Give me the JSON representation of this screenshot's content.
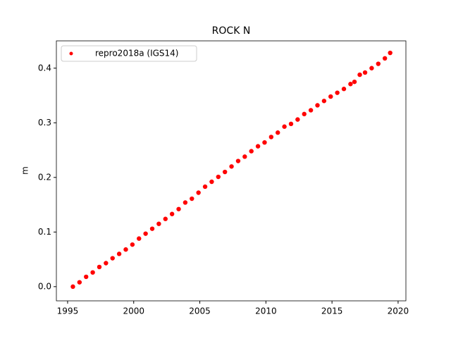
{
  "chart_data": {
    "type": "scatter",
    "title": "ROCK N",
    "y_label": "m",
    "series": [
      {
        "name": "repro2018a (IGS14)",
        "color": "#ff0000",
        "x": [
          1995.4,
          1995.9,
          1996.4,
          1996.9,
          1997.4,
          1997.9,
          1998.4,
          1998.9,
          1999.4,
          1999.9,
          2000.4,
          2000.9,
          2001.4,
          2001.9,
          2002.4,
          2002.9,
          2003.4,
          2003.9,
          2004.4,
          2004.9,
          2005.4,
          2005.9,
          2006.4,
          2006.9,
          2007.4,
          2007.9,
          2008.4,
          2008.9,
          2009.4,
          2009.9,
          2010.4,
          2010.9,
          2011.4,
          2011.9,
          2012.4,
          2012.9,
          2013.4,
          2013.9,
          2014.4,
          2014.9,
          2015.4,
          2015.9,
          2016.4,
          2016.7,
          2017.1,
          2017.5,
          2018.0,
          2018.5,
          2019.0,
          2019.4
        ],
        "values": [
          0.0,
          0.008,
          0.018,
          0.026,
          0.036,
          0.043,
          0.052,
          0.06,
          0.068,
          0.077,
          0.088,
          0.097,
          0.106,
          0.115,
          0.124,
          0.133,
          0.142,
          0.154,
          0.161,
          0.172,
          0.183,
          0.192,
          0.201,
          0.21,
          0.22,
          0.23,
          0.238,
          0.248,
          0.257,
          0.264,
          0.274,
          0.282,
          0.293,
          0.298,
          0.306,
          0.316,
          0.323,
          0.332,
          0.34,
          0.348,
          0.355,
          0.362,
          0.371,
          0.375,
          0.388,
          0.392,
          0.4,
          0.408,
          0.418,
          0.428
        ]
      }
    ],
    "xlim": [
      1994.15,
      2020.59
    ],
    "xticks": [
      1995,
      2000,
      2005,
      2010,
      2015,
      2020
    ],
    "ylim": [
      -0.026,
      0.45
    ],
    "yticks": [
      {
        "value": 0,
        "label": "0.0"
      },
      0.1,
      0.2,
      0.3,
      0.4
    ],
    "legend": "upper left"
  }
}
